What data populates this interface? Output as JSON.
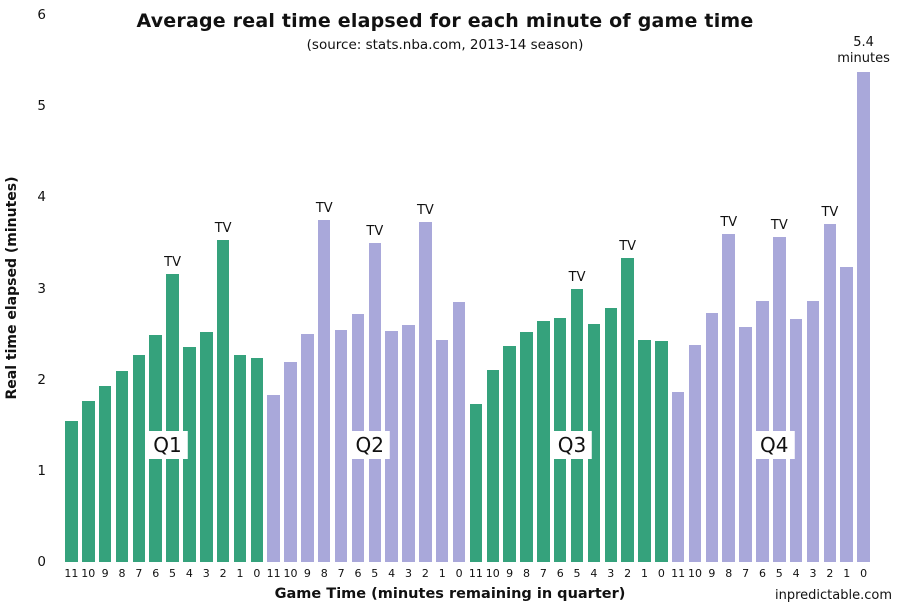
{
  "footer": {
    "site": "inpredictable.com"
  },
  "chart_data": {
    "type": "bar",
    "title": "Average real time elapsed for each minute of game time",
    "subtitle": "(source: stats.nba.com, 2013-14 season)",
    "xlabel": "Game Time (minutes remaining in quarter)",
    "ylabel": "Real time elapsed (minutes)",
    "ylim": [
      0,
      6
    ],
    "yticks": [
      0,
      1,
      2,
      3,
      4,
      5,
      6
    ],
    "grid": false,
    "legend": "none",
    "minutes_per_quarter": [
      11,
      10,
      9,
      8,
      7,
      6,
      5,
      4,
      3,
      2,
      1,
      0
    ],
    "tv_label": "TV",
    "colors": {
      "q1": "#35a27c",
      "q2": "#a9a8da",
      "q3": "#35a27c",
      "q4": "#a9a8da",
      "text": "#111111"
    },
    "series": [
      {
        "name": "Q1",
        "color": "#35a27c",
        "values": [
          1.55,
          1.77,
          1.93,
          2.09,
          2.27,
          2.49,
          3.16,
          2.36,
          2.52,
          3.53,
          2.27,
          2.24
        ],
        "tv_minutes": [
          5,
          2
        ]
      },
      {
        "name": "Q2",
        "color": "#a9a8da",
        "values": [
          1.83,
          2.19,
          2.5,
          3.75,
          2.54,
          2.72,
          3.5,
          2.53,
          2.6,
          3.73,
          2.44,
          2.85
        ],
        "tv_minutes": [
          8,
          5,
          2
        ]
      },
      {
        "name": "Q3",
        "color": "#35a27c",
        "values": [
          1.73,
          2.11,
          2.37,
          2.52,
          2.64,
          2.68,
          3.0,
          2.61,
          2.79,
          3.33,
          2.43,
          2.42
        ],
        "tv_minutes": [
          5,
          2
        ]
      },
      {
        "name": "Q4",
        "color": "#a9a8da",
        "values": [
          1.86,
          2.38,
          2.73,
          3.6,
          2.58,
          2.86,
          3.57,
          2.66,
          2.86,
          3.71,
          3.24,
          5.37
        ],
        "tv_minutes": [
          8,
          5,
          2
        ]
      }
    ],
    "annotation": {
      "lines": [
        "5.4",
        "minutes"
      ],
      "quarter": "Q4",
      "minute": 0
    }
  }
}
